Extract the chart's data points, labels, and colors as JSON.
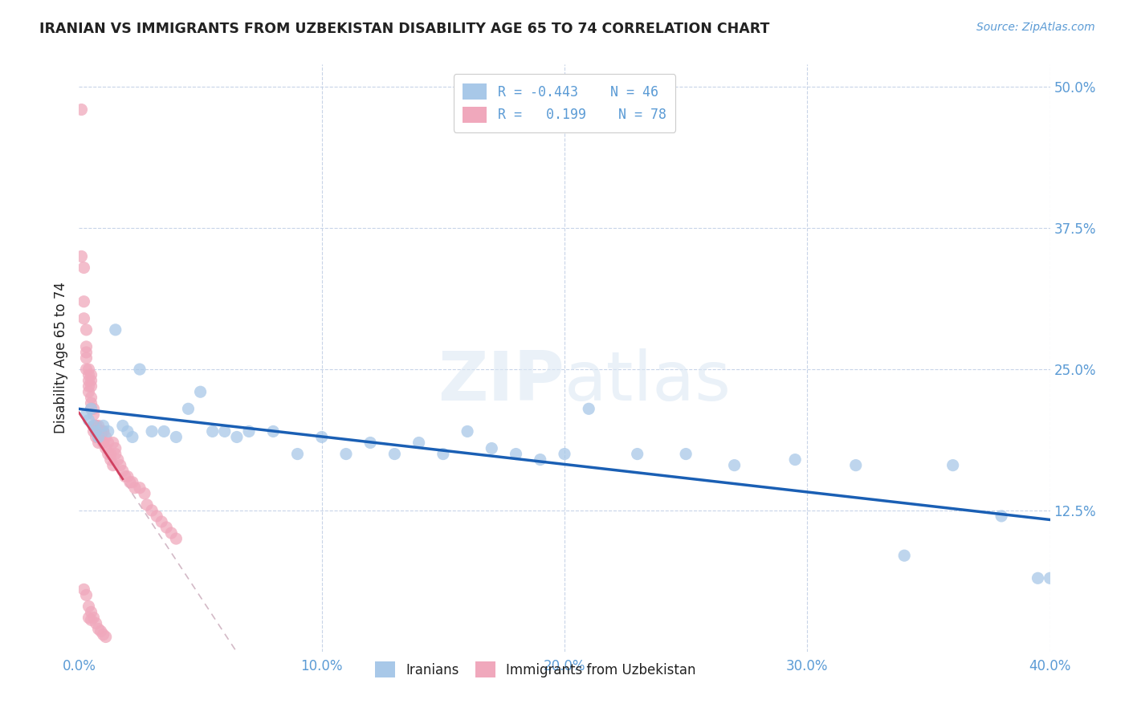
{
  "title": "IRANIAN VS IMMIGRANTS FROM UZBEKISTAN DISABILITY AGE 65 TO 74 CORRELATION CHART",
  "source": "Source: ZipAtlas.com",
  "ylabel": "Disability Age 65 to 74",
  "right_yticks": [
    "50.0%",
    "37.5%",
    "25.0%",
    "12.5%"
  ],
  "right_ytick_vals": [
    0.5,
    0.375,
    0.25,
    0.125
  ],
  "legend_iranians_R": "-0.443",
  "legend_iranians_N": "46",
  "legend_uzbekistan_R": "0.199",
  "legend_uzbekistan_N": "78",
  "watermark_zip": "ZIP",
  "watermark_atlas": "atlas",
  "xmin": 0.0,
  "xmax": 0.4,
  "ymin": 0.0,
  "ymax": 0.52,
  "iranians_x": [
    0.003,
    0.004,
    0.005,
    0.006,
    0.007,
    0.008,
    0.01,
    0.012,
    0.015,
    0.018,
    0.02,
    0.022,
    0.025,
    0.03,
    0.035,
    0.04,
    0.045,
    0.05,
    0.055,
    0.06,
    0.065,
    0.07,
    0.08,
    0.09,
    0.1,
    0.11,
    0.12,
    0.13,
    0.14,
    0.15,
    0.16,
    0.17,
    0.18,
    0.19,
    0.2,
    0.21,
    0.23,
    0.25,
    0.27,
    0.295,
    0.32,
    0.34,
    0.36,
    0.38,
    0.395,
    0.4
  ],
  "iranians_y": [
    0.21,
    0.205,
    0.215,
    0.2,
    0.195,
    0.19,
    0.2,
    0.195,
    0.285,
    0.2,
    0.195,
    0.19,
    0.25,
    0.195,
    0.195,
    0.19,
    0.215,
    0.23,
    0.195,
    0.195,
    0.19,
    0.195,
    0.195,
    0.175,
    0.19,
    0.175,
    0.185,
    0.175,
    0.185,
    0.175,
    0.195,
    0.18,
    0.175,
    0.17,
    0.175,
    0.215,
    0.175,
    0.175,
    0.165,
    0.17,
    0.165,
    0.085,
    0.165,
    0.12,
    0.065,
    0.065
  ],
  "uzbekistan_x": [
    0.001,
    0.001,
    0.002,
    0.002,
    0.002,
    0.003,
    0.003,
    0.003,
    0.003,
    0.003,
    0.004,
    0.004,
    0.004,
    0.004,
    0.004,
    0.005,
    0.005,
    0.005,
    0.005,
    0.005,
    0.005,
    0.006,
    0.006,
    0.006,
    0.006,
    0.007,
    0.007,
    0.007,
    0.007,
    0.008,
    0.008,
    0.008,
    0.008,
    0.009,
    0.009,
    0.01,
    0.01,
    0.01,
    0.01,
    0.011,
    0.011,
    0.012,
    0.012,
    0.013,
    0.013,
    0.014,
    0.014,
    0.015,
    0.015,
    0.016,
    0.017,
    0.018,
    0.019,
    0.02,
    0.021,
    0.022,
    0.023,
    0.025,
    0.027,
    0.028,
    0.03,
    0.032,
    0.034,
    0.036,
    0.038,
    0.04,
    0.002,
    0.003,
    0.004,
    0.005,
    0.006,
    0.007,
    0.008,
    0.009,
    0.01,
    0.011,
    0.004,
    0.005
  ],
  "uzbekistan_y": [
    0.48,
    0.35,
    0.34,
    0.31,
    0.295,
    0.285,
    0.27,
    0.265,
    0.26,
    0.25,
    0.245,
    0.24,
    0.235,
    0.23,
    0.25,
    0.245,
    0.24,
    0.235,
    0.225,
    0.22,
    0.215,
    0.215,
    0.21,
    0.2,
    0.195,
    0.2,
    0.19,
    0.2,
    0.195,
    0.19,
    0.19,
    0.185,
    0.2,
    0.195,
    0.19,
    0.185,
    0.195,
    0.185,
    0.195,
    0.19,
    0.18,
    0.185,
    0.175,
    0.175,
    0.17,
    0.165,
    0.185,
    0.18,
    0.175,
    0.17,
    0.165,
    0.16,
    0.155,
    0.155,
    0.15,
    0.15,
    0.145,
    0.145,
    0.14,
    0.13,
    0.125,
    0.12,
    0.115,
    0.11,
    0.105,
    0.1,
    0.055,
    0.05,
    0.04,
    0.035,
    0.03,
    0.025,
    0.02,
    0.018,
    0.015,
    0.013,
    0.03,
    0.028
  ],
  "blue_color": "#a8c8e8",
  "pink_color": "#f0a8bc",
  "blue_line_color": "#1a5fb4",
  "pink_line_color": "#d04060",
  "pink_dash_color": "#c8a8b8",
  "title_color": "#222222",
  "axis_color": "#5b9bd5",
  "legend_text_color": "#5b9bd5",
  "right_axis_color": "#5b9bd5",
  "grid_color": "#c8d4e8",
  "background_color": "#ffffff"
}
